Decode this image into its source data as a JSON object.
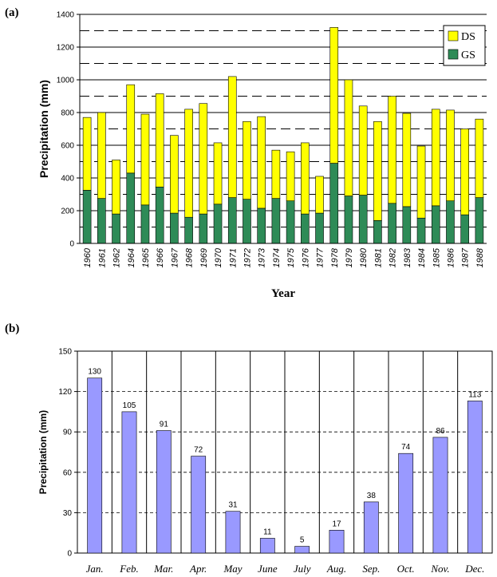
{
  "chart_data": [
    {
      "panel_label": "(a)",
      "type": "bar",
      "stacked": true,
      "xlabel": "Year",
      "ylabel": "Precipitation  (mm)",
      "ylim": [
        0,
        1400
      ],
      "yticks": [
        0,
        200,
        400,
        600,
        800,
        1000,
        1200,
        1400
      ],
      "categories": [
        "1960",
        "1961",
        "1962",
        "1964",
        "1965",
        "1966",
        "1967",
        "1968",
        "1969",
        "1970",
        "1971",
        "1972",
        "1973",
        "1974",
        "1975",
        "1976",
        "1977",
        "1978",
        "1979",
        "1980",
        "1981",
        "1982",
        "1983",
        "1984",
        "1985",
        "1986",
        "1987",
        "1988"
      ],
      "series": [
        {
          "name": "GS",
          "color": "#2e8b57",
          "values": [
            325,
            275,
            180,
            430,
            235,
            345,
            185,
            160,
            180,
            240,
            280,
            270,
            215,
            275,
            260,
            180,
            185,
            490,
            290,
            295,
            140,
            245,
            225,
            155,
            230,
            260,
            175,
            280
          ]
        },
        {
          "name": "DS",
          "color": "#ffff00",
          "values": [
            445,
            525,
            330,
            540,
            555,
            570,
            475,
            660,
            675,
            375,
            740,
            475,
            560,
            295,
            300,
            435,
            225,
            830,
            710,
            545,
            605,
            655,
            570,
            440,
            590,
            555,
            525,
            480
          ]
        }
      ],
      "legend": "top-right",
      "grid": "horizontal"
    },
    {
      "panel_label": "(b)",
      "type": "bar",
      "xlabel": "",
      "ylabel": "Precipitation (mm)",
      "ylim": [
        0,
        150
      ],
      "yticks": [
        0,
        30,
        60,
        90,
        120,
        150
      ],
      "categories": [
        "Jan.",
        "Feb.",
        "Mar.",
        "Apr.",
        "May",
        "June",
        "July",
        "Aug.",
        "Sep.",
        "Oct.",
        "Nov.",
        "Dec."
      ],
      "values": [
        130,
        105,
        91,
        72,
        31,
        11,
        5,
        17,
        38,
        74,
        86,
        113
      ],
      "data_labels": [
        "130",
        "105",
        "91",
        "72",
        "31",
        "11",
        "5",
        "17",
        "38",
        "74",
        "86",
        "113"
      ],
      "color": "#9999ff",
      "grid": "horizontal"
    }
  ]
}
